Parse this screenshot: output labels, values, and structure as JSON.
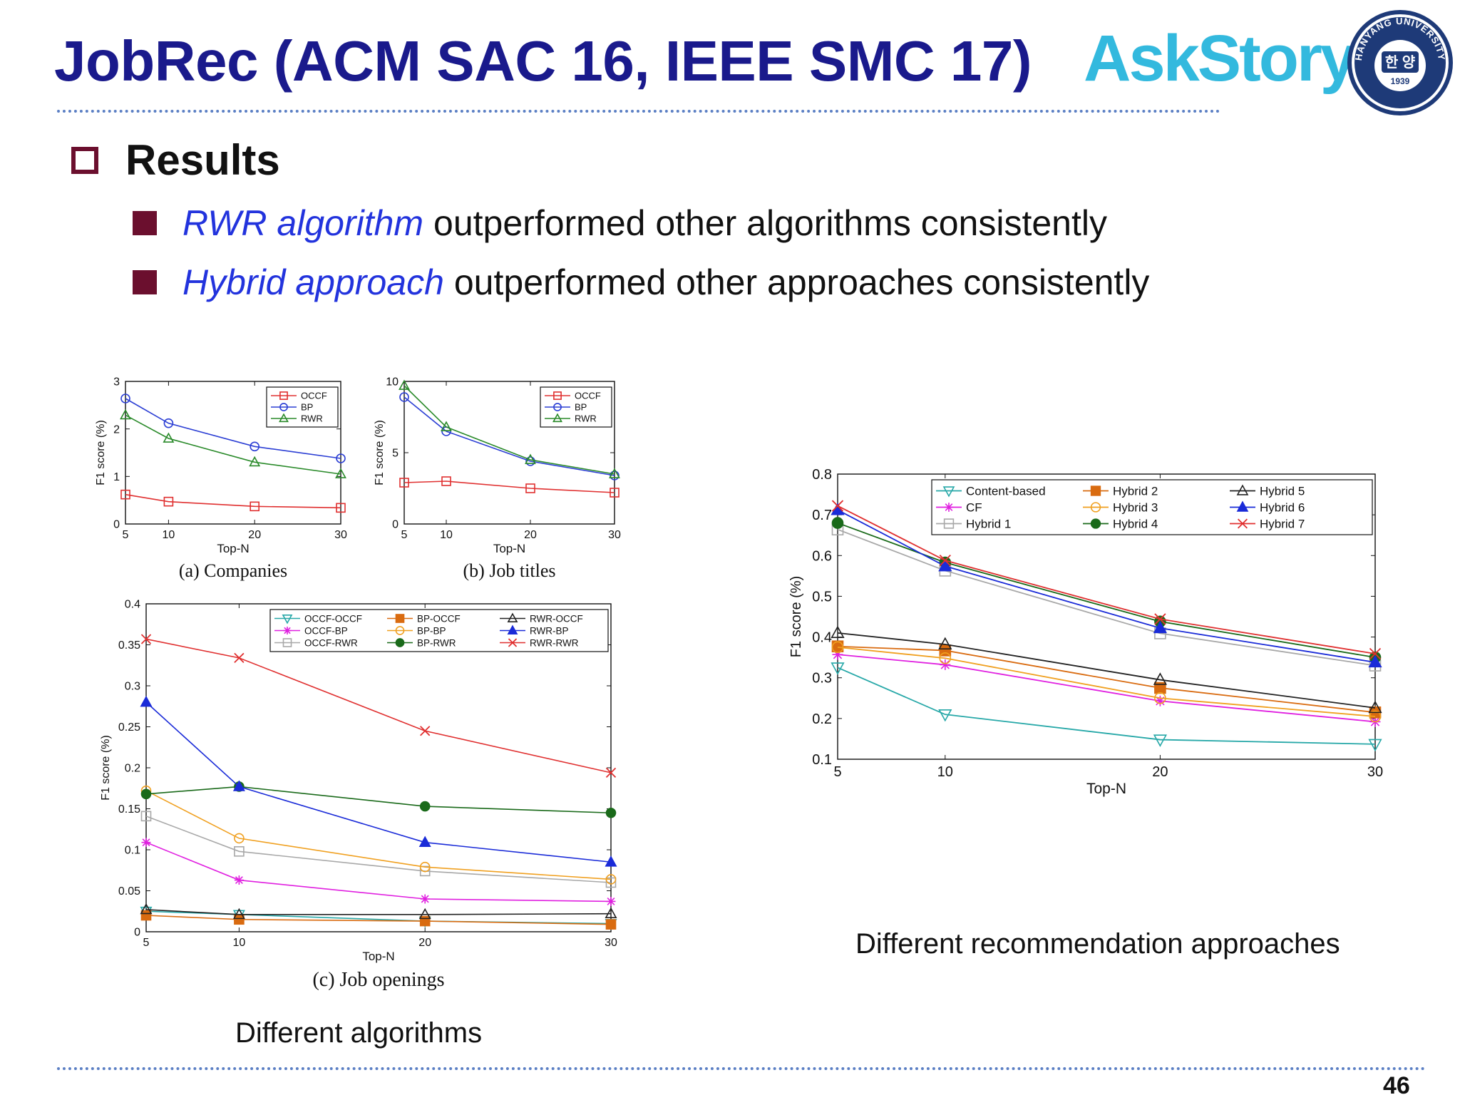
{
  "slide": {
    "title": "JobRec (ACM SAC 16, IEEE SMC 17)",
    "logo_ask": "Ask",
    "logo_story": "Story",
    "seal_top": "HANYANG UNIVERSITY",
    "seal_center": "한 양",
    "seal_year": "1939",
    "section": "Results",
    "bullets": [
      {
        "highlight": "RWR algorithm",
        "rest": "outperformed other algorithms consistently"
      },
      {
        "highlight": "Hybrid approach",
        "rest": "outperformed other approaches consistently"
      }
    ],
    "caption_left": "Different algorithms",
    "caption_right": "Different recommendation approaches",
    "page": "46"
  },
  "chart_data": [
    {
      "id": "a",
      "type": "line",
      "subtitle": "(a) Companies",
      "xlabel": "Top-N",
      "ylabel": "F1 score (%)",
      "x": [
        5,
        10,
        20,
        30
      ],
      "xlim": [
        5,
        30
      ],
      "ylim": [
        0,
        3
      ],
      "yticks": [
        0,
        1,
        2,
        3
      ],
      "legend_position": "top-right",
      "legend_cols": 1,
      "series": [
        {
          "name": "OCCF",
          "color": "#e03030",
          "marker": "square",
          "values": [
            0.62,
            0.47,
            0.37,
            0.34
          ]
        },
        {
          "name": "BP",
          "color": "#2b3ed4",
          "marker": "circle",
          "values": [
            2.64,
            2.12,
            1.63,
            1.38
          ]
        },
        {
          "name": "RWR",
          "color": "#2a8a2a",
          "marker": "triangle",
          "values": [
            2.29,
            1.8,
            1.3,
            1.05
          ]
        }
      ]
    },
    {
      "id": "b",
      "type": "line",
      "subtitle": "(b) Job titles",
      "xlabel": "Top-N",
      "ylabel": "F1 score (%)",
      "x": [
        5,
        10,
        20,
        30
      ],
      "xlim": [
        5,
        30
      ],
      "ylim": [
        0,
        10
      ],
      "yticks": [
        0,
        5,
        10
      ],
      "legend_position": "top-right",
      "legend_cols": 1,
      "series": [
        {
          "name": "OCCF",
          "color": "#e03030",
          "marker": "square",
          "values": [
            2.9,
            3.0,
            2.5,
            2.2
          ]
        },
        {
          "name": "BP",
          "color": "#2b3ed4",
          "marker": "circle",
          "values": [
            8.9,
            6.5,
            4.4,
            3.4
          ]
        },
        {
          "name": "RWR",
          "color": "#2a8a2a",
          "marker": "triangle",
          "values": [
            9.7,
            6.8,
            4.5,
            3.5
          ]
        }
      ]
    },
    {
      "id": "c",
      "type": "line",
      "subtitle": "(c) Job openings",
      "xlabel": "Top-N",
      "ylabel": "F1 score (%)",
      "x": [
        5,
        10,
        20,
        30
      ],
      "xlim": [
        5,
        30
      ],
      "ylim": [
        0,
        0.4
      ],
      "yticks": [
        0,
        0.05,
        0.1,
        0.15,
        0.2,
        0.25,
        0.3,
        0.35,
        0.4
      ],
      "legend_position": "top-right",
      "legend_cols": 3,
      "series": [
        {
          "name": "OCCF-OCCF",
          "color": "#27a8a8",
          "marker": "triangle-down",
          "values": [
            0.025,
            0.021,
            0.013,
            0.01
          ]
        },
        {
          "name": "OCCF-BP",
          "color": "#e020e0",
          "marker": "star",
          "values": [
            0.109,
            0.063,
            0.04,
            0.037
          ]
        },
        {
          "name": "OCCF-RWR",
          "color": "#a8a8a8",
          "marker": "square",
          "values": [
            0.141,
            0.098,
            0.074,
            0.06
          ]
        },
        {
          "name": "BP-OCCF",
          "color": "#d96b10",
          "marker": "square-filled",
          "values": [
            0.02,
            0.015,
            0.013,
            0.009
          ]
        },
        {
          "name": "BP-BP",
          "color": "#f0a020",
          "marker": "circle",
          "values": [
            0.172,
            0.114,
            0.079,
            0.064
          ]
        },
        {
          "name": "BP-RWR",
          "color": "#1a6a1a",
          "marker": "circle-filled",
          "values": [
            0.168,
            0.177,
            0.153,
            0.145
          ]
        },
        {
          "name": "RWR-OCCF",
          "color": "#222222",
          "marker": "triangle",
          "values": [
            0.027,
            0.021,
            0.021,
            0.022
          ]
        },
        {
          "name": "RWR-BP",
          "color": "#1a2bd8",
          "marker": "triangle-filled",
          "values": [
            0.28,
            0.177,
            0.109,
            0.085
          ]
        },
        {
          "name": "RWR-RWR",
          "color": "#e03030",
          "marker": "x",
          "values": [
            0.357,
            0.334,
            0.245,
            0.194
          ]
        }
      ]
    },
    {
      "id": "d",
      "type": "line",
      "subtitle": "",
      "xlabel": "Top-N",
      "ylabel": "F1 score (%)",
      "x": [
        5,
        10,
        20,
        30
      ],
      "xlim": [
        5,
        30
      ],
      "ylim": [
        0.1,
        0.8
      ],
      "yticks": [
        0.1,
        0.2,
        0.3,
        0.4,
        0.5,
        0.6,
        0.7,
        0.8
      ],
      "legend_position": "top-right",
      "legend_cols": 3,
      "series": [
        {
          "name": "Content-based",
          "color": "#27a8a8",
          "marker": "triangle-down",
          "values": [
            0.325,
            0.21,
            0.148,
            0.137
          ]
        },
        {
          "name": "CF",
          "color": "#e020e0",
          "marker": "star",
          "values": [
            0.357,
            0.332,
            0.243,
            0.192
          ]
        },
        {
          "name": "Hybrid 1",
          "color": "#a8a8a8",
          "marker": "square",
          "values": [
            0.664,
            0.563,
            0.409,
            0.33
          ]
        },
        {
          "name": "Hybrid 2",
          "color": "#d96b10",
          "marker": "square-filled",
          "values": [
            0.377,
            0.367,
            0.275,
            0.215
          ]
        },
        {
          "name": "Hybrid 3",
          "color": "#f0a020",
          "marker": "circle",
          "values": [
            0.375,
            0.348,
            0.25,
            0.205
          ]
        },
        {
          "name": "Hybrid 4",
          "color": "#1a6a1a",
          "marker": "circle-filled",
          "values": [
            0.68,
            0.583,
            0.438,
            0.35
          ]
        },
        {
          "name": "Hybrid 5",
          "color": "#222222",
          "marker": "triangle",
          "values": [
            0.41,
            0.382,
            0.295,
            0.226
          ]
        },
        {
          "name": "Hybrid 6",
          "color": "#1a2bd8",
          "marker": "triangle-filled",
          "values": [
            0.712,
            0.574,
            0.422,
            0.338
          ]
        },
        {
          "name": "Hybrid 7",
          "color": "#e03030",
          "marker": "x",
          "values": [
            0.722,
            0.588,
            0.444,
            0.359
          ]
        }
      ]
    }
  ]
}
